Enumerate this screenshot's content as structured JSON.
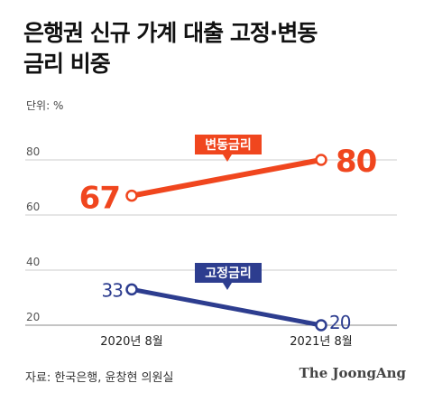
{
  "title": {
    "line1": "은행권 신규 가계 대출 고정·변동",
    "line2": "금리 비중"
  },
  "unit_label": "단위: %",
  "source": "자료: 한국은행, 윤창현 의원실",
  "brand": "The JoongAng",
  "colors": {
    "variable": "#f0461e",
    "fixed": "#2d3d8f",
    "grid": "#cccccc",
    "text": "#333333"
  },
  "chart_data": {
    "type": "line",
    "categories": [
      "2020년 8월",
      "2021년 8월"
    ],
    "ylim": [
      20,
      90
    ],
    "yticks": [
      20,
      40,
      60,
      80
    ],
    "grid": true,
    "series": [
      {
        "name": "변동금리",
        "values": [
          67,
          80
        ],
        "data_labels": [
          "67",
          "80"
        ]
      },
      {
        "name": "고정금리",
        "values": [
          33,
          20
        ],
        "data_labels": [
          "33",
          "20"
        ]
      }
    ]
  }
}
